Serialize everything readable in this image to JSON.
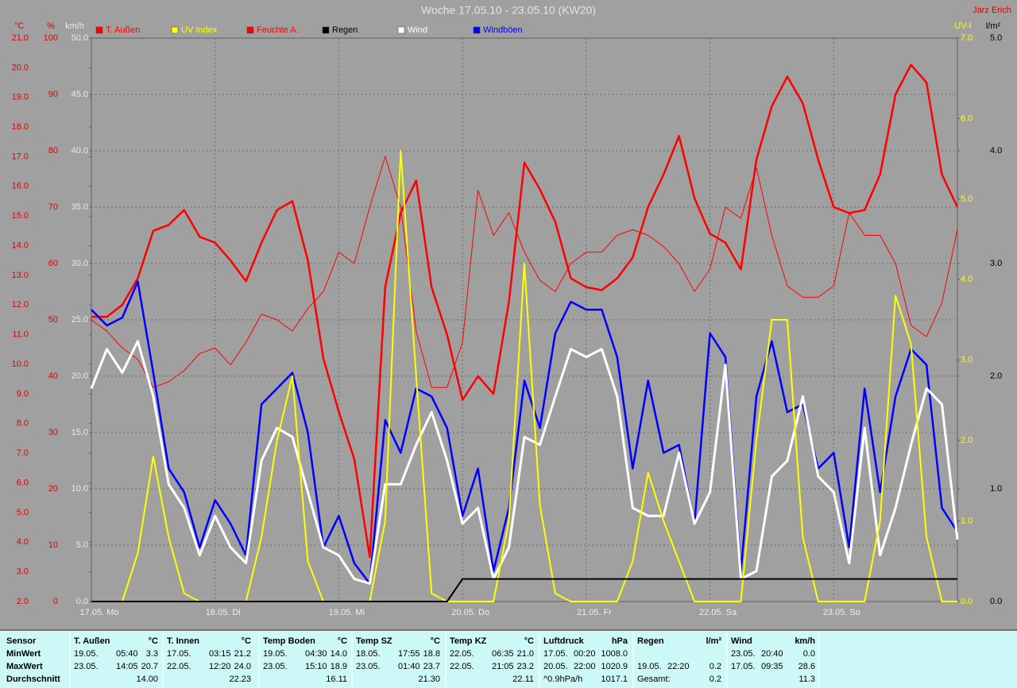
{
  "chart_data": {
    "type": "line",
    "title": "Woche 17.05.10 - 23.05.10 (KW20)",
    "author": "Jarz Erich",
    "grid": true,
    "categories": [
      "17.05. Mo",
      null,
      null,
      null,
      null,
      null,
      null,
      null,
      "18.05. Di",
      null,
      null,
      null,
      null,
      null,
      null,
      null,
      "19.05. Mi",
      null,
      null,
      null,
      null,
      null,
      null,
      null,
      "20.05. Do",
      null,
      null,
      null,
      null,
      null,
      null,
      null,
      "21.05. Fr",
      null,
      null,
      null,
      null,
      null,
      null,
      null,
      "22.05. Sa",
      null,
      null,
      null,
      null,
      null,
      null,
      null,
      "23.05. So",
      null,
      null,
      null,
      null,
      null,
      null,
      null,
      null
    ],
    "axes": [
      {
        "id": "y",
        "label": "°C",
        "color": "#e00000",
        "ylim": [
          2,
          21
        ],
        "yticks": [
          {
            "value": 2,
            "label": "2.0"
          },
          {
            "value": 3,
            "label": "3.0"
          },
          {
            "value": 4,
            "label": "4.0"
          },
          {
            "value": 5,
            "label": "5.0"
          },
          {
            "value": 6,
            "label": "6.0"
          },
          {
            "value": 7,
            "label": "7.0"
          },
          {
            "value": 8,
            "label": "8.0"
          },
          {
            "value": 9,
            "label": "9.0"
          },
          {
            "value": 10,
            "label": "10.0"
          },
          {
            "value": 11,
            "label": "11.0"
          },
          {
            "value": 12,
            "label": "12.0"
          },
          {
            "value": 13,
            "label": "13.0"
          },
          {
            "value": 14,
            "label": "14.0"
          },
          {
            "value": 15,
            "label": "15.0"
          },
          {
            "value": 16,
            "label": "16.0"
          },
          {
            "value": 17,
            "label": "17.0"
          },
          {
            "value": 18,
            "label": "18.0"
          },
          {
            "value": 19,
            "label": "19.0"
          },
          {
            "value": 20,
            "label": "20.0"
          },
          {
            "value": 21,
            "label": "21.0"
          }
        ]
      },
      {
        "id": "y2",
        "label": "%",
        "color": "#e00000",
        "ylim": [
          0,
          100
        ],
        "yticks": [
          0,
          10,
          20,
          30,
          40,
          50,
          60,
          70,
          80,
          90,
          100
        ]
      },
      {
        "id": "y3",
        "label": "km/h",
        "color": "#e8e8e8",
        "ylim": [
          0,
          50
        ],
        "yticks": [
          {
            "value": 0,
            "label": "0.0"
          },
          {
            "value": 5,
            "label": "5.0"
          },
          {
            "value": 10,
            "label": "10.0"
          },
          {
            "value": 15,
            "label": "15.0"
          },
          {
            "value": 20,
            "label": "20.0"
          },
          {
            "value": 25,
            "label": "25.0"
          },
          {
            "value": 30,
            "label": "30.0"
          },
          {
            "value": 35,
            "label": "35.0"
          },
          {
            "value": 40,
            "label": "40.0"
          },
          {
            "value": 45,
            "label": "45.0"
          },
          {
            "value": 50,
            "label": "50.0"
          }
        ]
      },
      {
        "id": "y4",
        "label": "UV-I",
        "color": "#ffff00",
        "ylim": [
          0,
          7
        ],
        "yticks": [
          {
            "value": 0,
            "label": "0.0"
          },
          {
            "value": 1,
            "label": "1.0"
          },
          {
            "value": 2,
            "label": "2.0"
          },
          {
            "value": 3,
            "label": "3.0"
          },
          {
            "value": 4,
            "label": "4.0"
          },
          {
            "value": 5,
            "label": "5.0"
          },
          {
            "value": 6,
            "label": "6.0"
          },
          {
            "value": 7,
            "label": "7.0"
          }
        ]
      },
      {
        "id": "y5",
        "label": "l/m²",
        "color": "#000000",
        "ylim": [
          0,
          5
        ],
        "yticks": [
          {
            "value": 0,
            "label": "0.0"
          },
          {
            "value": 1,
            "label": "1.0"
          },
          {
            "value": 2,
            "label": "2.0"
          },
          {
            "value": 3,
            "label": "3.0"
          },
          {
            "value": 4,
            "label": "4.0"
          },
          {
            "value": 5,
            "label": "5.0"
          }
        ]
      }
    ],
    "series": [
      {
        "name": "T. Außen",
        "color": "#ff0000",
        "axis": "y",
        "values": [
          11.6,
          11.6,
          12.0,
          12.9,
          14.5,
          14.7,
          15.2,
          14.3,
          14.1,
          13.5,
          12.8,
          14.1,
          15.2,
          15.5,
          13.5,
          10.2,
          8.4,
          6.8,
          3.5,
          12.6,
          15.1,
          16.2,
          12.6,
          11.0,
          8.8,
          9.6,
          9.0,
          12.1,
          16.8,
          15.9,
          14.8,
          12.9,
          12.6,
          12.5,
          12.9,
          13.6,
          15.3,
          16.4,
          17.7,
          15.6,
          14.4,
          14.1,
          13.2,
          16.9,
          18.7,
          19.7,
          18.8,
          16.9,
          15.3,
          15.1,
          15.2,
          16.4,
          19.1,
          20.1,
          19.5,
          16.4,
          15.3
        ]
      },
      {
        "name": "UV Index",
        "color": "#ffff00",
        "axis": "y4",
        "values": [
          0,
          0,
          0,
          0.6,
          1.8,
          0.8,
          0.1,
          0,
          0,
          0,
          0,
          0.8,
          2.0,
          2.8,
          0.5,
          0,
          0,
          0,
          0,
          1.0,
          5.6,
          2.8,
          0.1,
          0,
          0,
          0,
          0,
          1.0,
          4.2,
          1.2,
          0.1,
          0,
          0,
          0,
          0,
          0.5,
          1.6,
          1.0,
          0.5,
          0,
          0,
          0,
          0,
          2.0,
          3.5,
          3.5,
          0.8,
          0,
          0,
          0,
          0,
          1.0,
          3.8,
          3.2,
          0.8,
          0,
          0
        ]
      },
      {
        "name": "Feuchte A.",
        "color": "#ff0000",
        "axis": "y2",
        "values": [
          50,
          48,
          45,
          43,
          38,
          39,
          41,
          44,
          45,
          42,
          46,
          51,
          50,
          48,
          52,
          55,
          62,
          60,
          70,
          79,
          70,
          48,
          38,
          38,
          46,
          73,
          65,
          69,
          62,
          57,
          55,
          60,
          62,
          62,
          65,
          66,
          65,
          63,
          60,
          55,
          59,
          70,
          68,
          77,
          65,
          56,
          54,
          54,
          56,
          69,
          65,
          65,
          60,
          49,
          47,
          53,
          66
        ]
      },
      {
        "name": "Regen",
        "color": "#000000",
        "axis": "y5",
        "values": [
          0,
          0,
          0,
          0,
          0,
          0,
          0,
          0,
          0,
          0,
          0,
          0,
          0,
          0,
          0,
          0,
          0,
          0,
          0,
          0,
          0,
          0,
          0,
          0,
          0.2,
          0.2,
          0.2,
          0.2,
          0.2,
          0.2,
          0.2,
          0.2,
          0.2,
          0.2,
          0.2,
          0.2,
          0.2,
          0.2,
          0.2,
          0.2,
          0.2,
          0.2,
          0.2,
          0.2,
          0.2,
          0.2,
          0.2,
          0.2,
          0.2,
          0.2,
          0.2,
          0.2,
          0.2,
          0.2,
          0.2,
          0.2,
          0.2
        ]
      },
      {
        "name": "Wind",
        "color": "#ffffff",
        "axis": "y3",
        "values": [
          18.9,
          22.4,
          20.3,
          23.1,
          18.2,
          10.4,
          8.3,
          4.1,
          7.6,
          4.8,
          3.4,
          12.5,
          15.4,
          14.6,
          9.7,
          4.8,
          4.1,
          2.0,
          1.6,
          10.4,
          10.4,
          13.9,
          16.8,
          12.5,
          6.9,
          8.3,
          2.0,
          4.8,
          14.6,
          13.9,
          18.2,
          22.4,
          21.7,
          22.4,
          18.2,
          8.3,
          7.6,
          7.6,
          13.2,
          6.9,
          9.7,
          21.0,
          2.0,
          2.7,
          11.1,
          12.5,
          18.2,
          11.1,
          9.7,
          3.4,
          15.4,
          4.1,
          8.3,
          13.9,
          18.9,
          17.5,
          5.5
        ]
      },
      {
        "name": "Windböen",
        "color": "#0000ff",
        "axis": "y3",
        "values": [
          25.9,
          24.5,
          25.2,
          28.4,
          20.3,
          11.8,
          9.7,
          4.8,
          9.0,
          6.9,
          4.1,
          17.5,
          18.9,
          20.3,
          15.0,
          4.8,
          7.6,
          3.4,
          1.6,
          16.1,
          13.2,
          18.9,
          18.2,
          15.4,
          7.6,
          11.8,
          2.7,
          8.3,
          19.6,
          15.4,
          23.8,
          26.6,
          25.9,
          25.9,
          21.7,
          11.8,
          19.6,
          13.2,
          13.9,
          6.9,
          23.8,
          21.7,
          2.7,
          18.2,
          23.1,
          16.8,
          17.5,
          11.8,
          13.2,
          4.8,
          18.9,
          9.7,
          18.2,
          22.4,
          21.0,
          8.3,
          6.2
        ]
      }
    ]
  },
  "table": {
    "row_labels": [
      "Sensor",
      "MinWert",
      "MaxWert",
      "Durchschnitt"
    ],
    "columns": [
      {
        "name": "T. Außen",
        "unit": "°C",
        "min": [
          "19.05.",
          "05:40",
          "3.3"
        ],
        "max": [
          "23.05.",
          "14:05",
          "20.7"
        ],
        "avg": [
          "14.00"
        ]
      },
      {
        "name": "T. Innen",
        "unit": "°C",
        "min": [
          "17.05.",
          "03:15",
          "21.2"
        ],
        "max": [
          "22.05.",
          "12:20",
          "24.0"
        ],
        "avg": [
          "22.23"
        ]
      },
      {
        "name": "Temp Boden",
        "unit": "°C",
        "min": [
          "19.05.",
          "04:30",
          "14.0"
        ],
        "max": [
          "23.05.",
          "15:10",
          "18.9"
        ],
        "avg": [
          "16.11"
        ]
      },
      {
        "name": "Temp SZ",
        "unit": "°C",
        "min": [
          "18.05.",
          "17:55",
          "18.8"
        ],
        "max": [
          "23.05.",
          "01:40",
          "23.7"
        ],
        "avg": [
          "21.30"
        ]
      },
      {
        "name": "Temp KZ",
        "unit": "°C",
        "min": [
          "22.05.",
          "06:35",
          "21.0"
        ],
        "max": [
          "22.05.",
          "21:05",
          "23.2"
        ],
        "avg": [
          "22.11"
        ]
      },
      {
        "name": "Luftdruck",
        "unit": "hPa",
        "min": [
          "17.05.",
          "00:20",
          "1008.0"
        ],
        "max": [
          "20.05.",
          "22:00",
          "1020.9"
        ],
        "avg": [
          "^0.9hPa/h",
          "1017.1"
        ]
      },
      {
        "name": "Regen",
        "unit": "l/m²",
        "max": [
          "19.05.",
          "22:20",
          "0.2"
        ],
        "avg": [
          "Gesamt:",
          "0.2"
        ]
      },
      {
        "name": "Wind",
        "unit": "km/h",
        "min": [
          "23.05.",
          "20:40",
          "0.0"
        ],
        "max": [
          "17.05.",
          "09:35",
          "28.6"
        ],
        "avg": [
          "11.3"
        ]
      }
    ]
  }
}
